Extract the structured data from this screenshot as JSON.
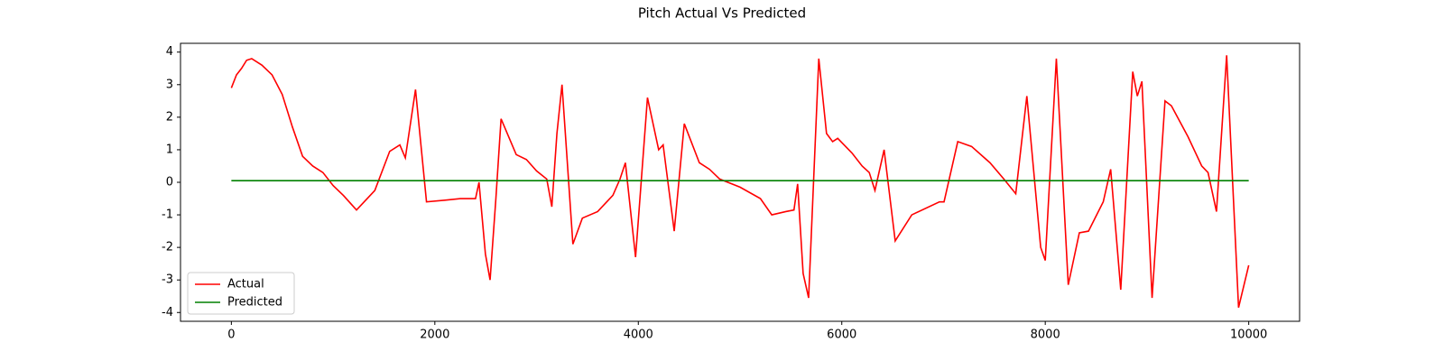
{
  "chart_data": {
    "type": "line",
    "title": "Pitch Actual Vs Predicted",
    "xlim": [
      -500,
      10500
    ],
    "ylim": [
      -4.27,
      4.27
    ],
    "xticks": [
      0,
      2000,
      4000,
      6000,
      8000,
      10000
    ],
    "yticks": [
      -4,
      -3,
      -2,
      -1,
      0,
      1,
      2,
      3,
      4
    ],
    "legend": "lower left",
    "series": [
      {
        "name": "Actual",
        "color": "#ff0000",
        "x": [
          0,
          50,
          100,
          150,
          200,
          300,
          400,
          500,
          600,
          700,
          800,
          900,
          1000,
          1100,
          1230,
          1410,
          1556,
          1656,
          1710,
          1810,
          1918,
          2100,
          2250,
          2400,
          2434,
          2497,
          2543,
          2600,
          2651,
          2800,
          2900,
          3000,
          3100,
          3150,
          3200,
          3250,
          3357,
          3450,
          3600,
          3750,
          3820,
          3873,
          3973,
          4090,
          4200,
          4244,
          4353,
          4452,
          4600,
          4700,
          4800,
          5000,
          5200,
          5312,
          5450,
          5530,
          5566,
          5620,
          5674,
          5774,
          5850,
          5910,
          5960,
          6100,
          6200,
          6270,
          6326,
          6416,
          6525,
          6688,
          6960,
          7005,
          7140,
          7276,
          7457,
          7593,
          7710,
          7819,
          7955,
          8000,
          8109,
          8226,
          8335,
          8425,
          8570,
          8643,
          8742,
          8860,
          8905,
          8950,
          9050,
          9177,
          9240,
          9403,
          9538,
          9600,
          9683,
          9783,
          9900,
          10000
        ],
        "values": [
          2.9,
          3.3,
          3.5,
          3.75,
          3.8,
          3.6,
          3.3,
          2.7,
          1.7,
          0.8,
          0.5,
          0.3,
          -0.1,
          -0.4,
          -0.85,
          -0.25,
          0.95,
          1.15,
          0.75,
          2.85,
          -0.6,
          -0.55,
          -0.5,
          -0.5,
          0.0,
          -2.2,
          -3.0,
          -0.5,
          1.95,
          0.85,
          0.7,
          0.35,
          0.1,
          -0.75,
          1.5,
          3.0,
          -1.9,
          -1.1,
          -0.9,
          -0.4,
          0.1,
          0.6,
          -2.3,
          2.6,
          1.0,
          1.15,
          -1.5,
          1.8,
          0.6,
          0.4,
          0.1,
          -0.15,
          -0.5,
          -1.0,
          -0.9,
          -0.85,
          -0.05,
          -2.8,
          -3.55,
          3.8,
          1.5,
          1.25,
          1.35,
          0.9,
          0.5,
          0.3,
          -0.25,
          1.0,
          -1.8,
          -1.0,
          -0.6,
          -0.6,
          1.25,
          1.1,
          0.6,
          0.1,
          -0.35,
          2.65,
          -2.0,
          -2.4,
          3.8,
          -3.15,
          -1.55,
          -1.5,
          -0.6,
          0.4,
          -3.3,
          3.4,
          2.65,
          3.1,
          -3.55,
          2.5,
          2.35,
          1.4,
          0.5,
          0.3,
          -0.9,
          3.9,
          -3.85,
          -2.55
        ]
      },
      {
        "name": "Predicted",
        "color": "#008000",
        "x": [
          0,
          10000
        ],
        "values": [
          0.05,
          0.05
        ]
      }
    ]
  }
}
